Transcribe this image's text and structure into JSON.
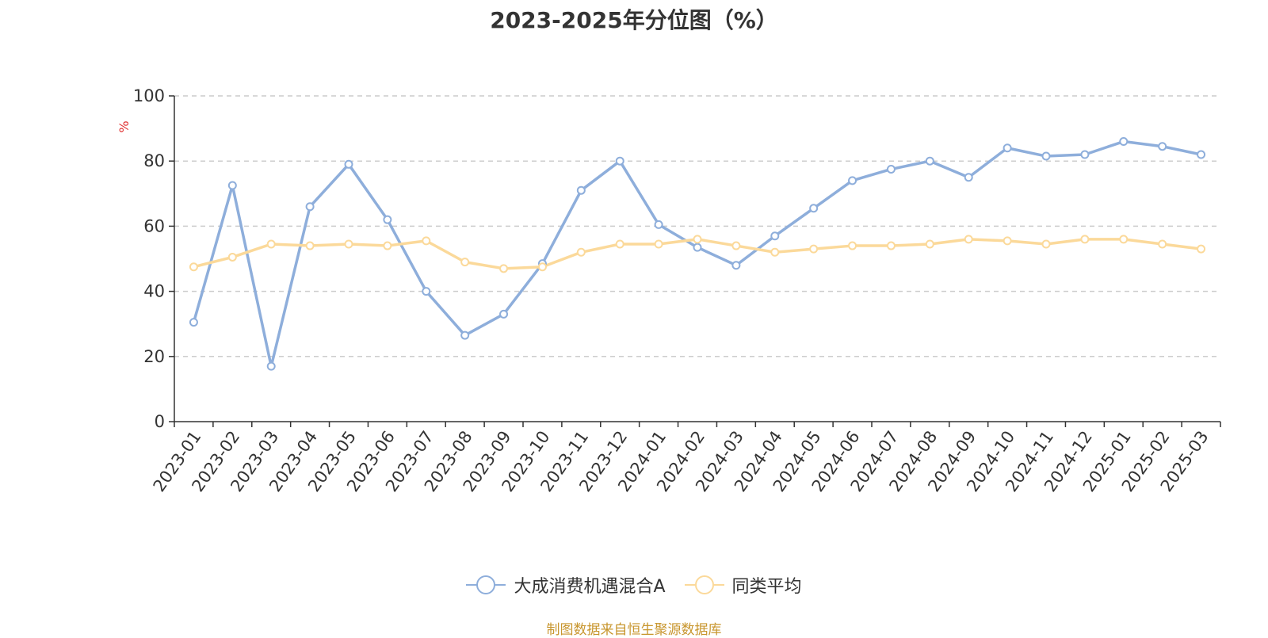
{
  "chart_data": {
    "type": "line",
    "title": "2023-2025年分位图（%）",
    "ylabel": "%",
    "xlabel": "",
    "ylim": [
      0,
      100
    ],
    "yticks": [
      0,
      20,
      40,
      60,
      80,
      100
    ],
    "grid": true,
    "legend_position": "bottom",
    "categories": [
      "2023-01",
      "2023-02",
      "2023-03",
      "2023-04",
      "2023-05",
      "2023-06",
      "2023-07",
      "2023-08",
      "2023-09",
      "2023-10",
      "2023-11",
      "2023-12",
      "2024-01",
      "2024-02",
      "2024-03",
      "2024-04",
      "2024-05",
      "2024-06",
      "2024-07",
      "2024-08",
      "2024-09",
      "2024-10",
      "2024-11",
      "2024-12",
      "2025-01",
      "2025-02",
      "2025-03"
    ],
    "series": [
      {
        "name": "大成消费机遇混合A",
        "color": "#8eaedb",
        "values": [
          30.5,
          72.5,
          17,
          66,
          79,
          62,
          40,
          26.5,
          33,
          48.5,
          71,
          80,
          60.5,
          53.5,
          48,
          57,
          65.5,
          74,
          77.5,
          80,
          75,
          84,
          81.5,
          82,
          86,
          84.5,
          82
        ]
      },
      {
        "name": "同类平均",
        "color": "#fbd99a",
        "values": [
          47.5,
          50.5,
          54.5,
          54,
          54.5,
          54,
          55.5,
          49,
          47,
          47.5,
          52,
          54.5,
          54.5,
          56,
          54,
          52,
          53,
          54,
          54,
          54.5,
          56,
          55.5,
          54.5,
          56,
          56,
          54.5,
          53
        ]
      }
    ]
  },
  "source_note": "制图数据来自恒生聚源数据库",
  "colors": {
    "axis": "#333333",
    "grid": "#cccccc",
    "ylabel": "#e03030",
    "source": "#c8962e"
  }
}
